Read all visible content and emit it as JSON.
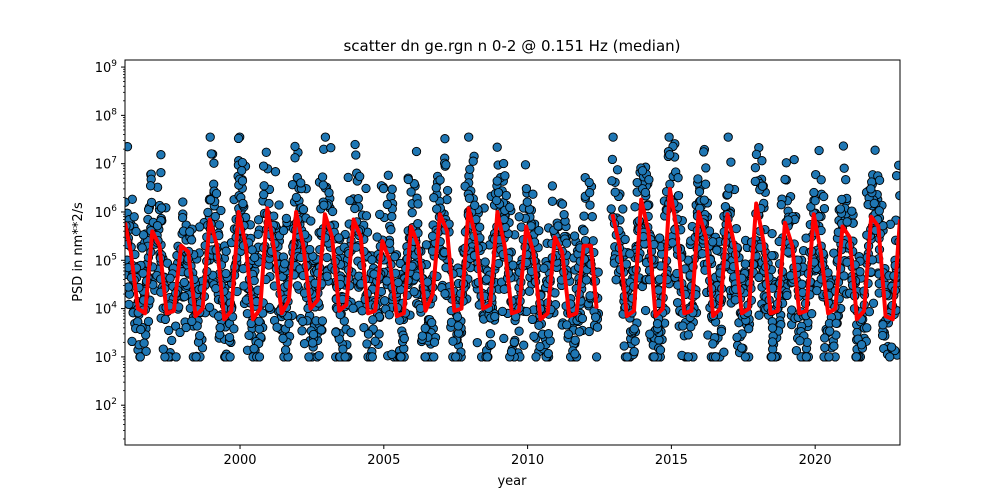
{
  "chart_data": {
    "type": "scatter",
    "title": "scatter dn ge.rgn n 0-2 @ 0.151 Hz (median)",
    "xlabel": "year",
    "ylabel": "PSD in nm**2/s",
    "xlim": [
      1996.0,
      2022.95
    ],
    "ylim": [
      15,
      1400000000
    ],
    "yscale": "log",
    "x_ticks": [
      2000,
      2005,
      2010,
      2015,
      2020
    ],
    "x_tick_labels": [
      "2000",
      "2005",
      "2010",
      "2015",
      "2020"
    ],
    "y_ticks": [
      100,
      1000,
      10000,
      100000,
      1000000,
      10000000,
      100000000,
      1000000000
    ],
    "y_tick_labels": [
      "10^2",
      "10^3",
      "10^4",
      "10^5",
      "10^6",
      "10^7",
      "10^8",
      "10^9"
    ],
    "gaps": [
      [
        2012.5,
        2012.9
      ]
    ],
    "series": [
      {
        "type": "scatter",
        "color": "#1f77b4",
        "edgecolor": "#000000",
        "description": "dense daily PSD values oscillating seasonally between ~2e3 and ~3e7"
      },
      {
        "type": "line",
        "color": "#ff0000",
        "x": [
          1996.0,
          1996.2,
          1996.45,
          1996.7,
          1996.95,
          1997.2,
          1997.45,
          1997.7,
          1997.95,
          1998.2,
          1998.45,
          1998.7,
          1998.95,
          1999.2,
          1999.45,
          1999.7,
          1999.95,
          2000.2,
          2000.45,
          2000.7,
          2000.95,
          2001.2,
          2001.45,
          2001.7,
          2001.95,
          2002.2,
          2002.45,
          2002.7,
          2002.95,
          2003.2,
          2003.45,
          2003.7,
          2003.95,
          2004.2,
          2004.45,
          2004.7,
          2004.95,
          2005.2,
          2005.45,
          2005.7,
          2005.95,
          2006.2,
          2006.45,
          2006.7,
          2006.95,
          2007.2,
          2007.45,
          2007.7,
          2007.95,
          2008.2,
          2008.45,
          2008.7,
          2008.95,
          2009.2,
          2009.45,
          2009.7,
          2009.95,
          2010.2,
          2010.45,
          2010.7,
          2010.95,
          2011.2,
          2011.45,
          2011.7,
          2011.95,
          2012.2,
          2012.4,
          2012.95,
          2013.2,
          2013.45,
          2013.7,
          2013.95,
          2014.2,
          2014.45,
          2014.7,
          2014.95,
          2015.2,
          2015.45,
          2015.7,
          2015.95,
          2016.2,
          2016.45,
          2016.7,
          2016.95,
          2017.2,
          2017.45,
          2017.7,
          2017.95,
          2018.2,
          2018.45,
          2018.7,
          2018.95,
          2019.2,
          2019.45,
          2019.7,
          2019.95,
          2020.2,
          2020.45,
          2020.7,
          2020.95,
          2021.2,
          2021.45,
          2021.7,
          2021.95,
          2022.2,
          2022.45,
          2022.7,
          2022.95
        ],
        "y": [
          600000,
          150000,
          10000,
          8000,
          400000,
          200000,
          8000,
          9000,
          200000,
          150000,
          7000,
          10000,
          700000,
          200000,
          6000,
          9000,
          1000000,
          200000,
          6000,
          10000,
          1200000,
          150000,
          8000,
          15000,
          1000000,
          200000,
          10000,
          15000,
          900000,
          300000,
          9000,
          12000,
          700000,
          300000,
          8000,
          9000,
          250000,
          100000,
          7000,
          8000,
          500000,
          200000,
          9000,
          20000,
          900000,
          400000,
          9000,
          10000,
          1200000,
          300000,
          10000,
          12000,
          1000000,
          200000,
          8000,
          9000,
          500000,
          150000,
          6000,
          8000,
          300000,
          150000,
          7000,
          8000,
          200000,
          200000,
          10000,
          900000,
          200000,
          7000,
          9000,
          1800000,
          400000,
          7000,
          10000,
          3000000,
          400000,
          8000,
          9000,
          1000000,
          300000,
          7000,
          10000,
          900000,
          200000,
          8000,
          10000,
          1500000,
          250000,
          8000,
          9000,
          600000,
          200000,
          8000,
          9000,
          900000,
          150000,
          8000,
          10000,
          500000,
          300000,
          6000,
          9000,
          800000,
          500000,
          7000,
          6000,
          700000
        ]
      }
    ]
  }
}
